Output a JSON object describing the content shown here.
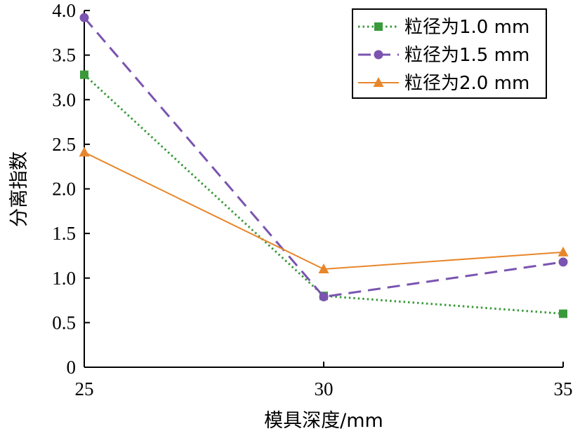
{
  "chart_data": {
    "type": "line",
    "xlabel": "模具深度/mm",
    "ylabel": "分离指数",
    "x": [
      25,
      30,
      35
    ],
    "x_ticks": [
      "25",
      "30",
      "35"
    ],
    "y_ticks": [
      "0",
      "0.5",
      "1.0",
      "1.5",
      "2.0",
      "2.5",
      "3.0",
      "3.5",
      "4.0"
    ],
    "xlim": [
      25,
      35
    ],
    "ylim": [
      0,
      4.0
    ],
    "grid": false,
    "legend_position": "top-right",
    "series": [
      {
        "name": "粒径为1.0 mm",
        "values": [
          3.28,
          0.8,
          0.6
        ],
        "color": "#3a9a3a",
        "line_style": "dotted",
        "marker": "square"
      },
      {
        "name": "粒径为1.5 mm",
        "values": [
          3.92,
          0.79,
          1.18
        ],
        "color": "#7a54b0",
        "line_style": "dashed",
        "marker": "circle"
      },
      {
        "name": "粒径为2.0 mm",
        "values": [
          2.41,
          1.1,
          1.29
        ],
        "color": "#e8862a",
        "line_style": "solid",
        "marker": "triangle"
      }
    ]
  }
}
